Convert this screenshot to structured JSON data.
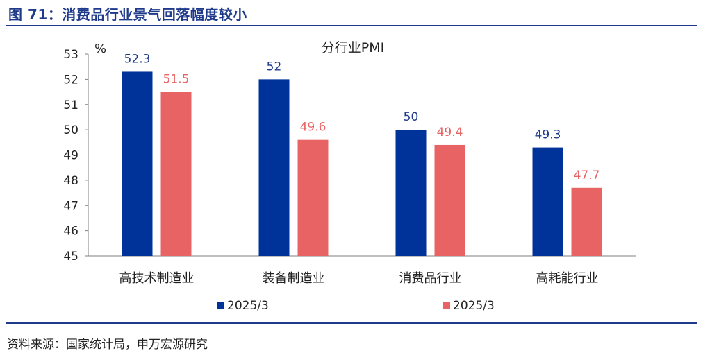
{
  "figure_title": "图 71：消费品行业景气回落幅度较小",
  "source": "资料来源：国家统计局，申万宏源研究",
  "chart_data": {
    "type": "bar",
    "title": "分行业PMI",
    "ylabel": "%",
    "xlabel": "",
    "ylim": [
      45,
      53
    ],
    "yticks": [
      45,
      46,
      47,
      48,
      49,
      50,
      51,
      52,
      53
    ],
    "grid": false,
    "legend_position": "bottom",
    "categories": [
      "高技术制造业",
      "装备制造业",
      "消费品行业",
      "高耗能行业"
    ],
    "series": [
      {
        "name": "2025/3",
        "color": "#003399",
        "label_color": "#1f3a8a",
        "values": [
          52.3,
          52,
          50,
          49.3
        ]
      },
      {
        "name": "2025/3",
        "color": "#e86464",
        "label_color": "#e86464",
        "values": [
          51.5,
          49.6,
          49.4,
          47.7
        ]
      }
    ]
  }
}
